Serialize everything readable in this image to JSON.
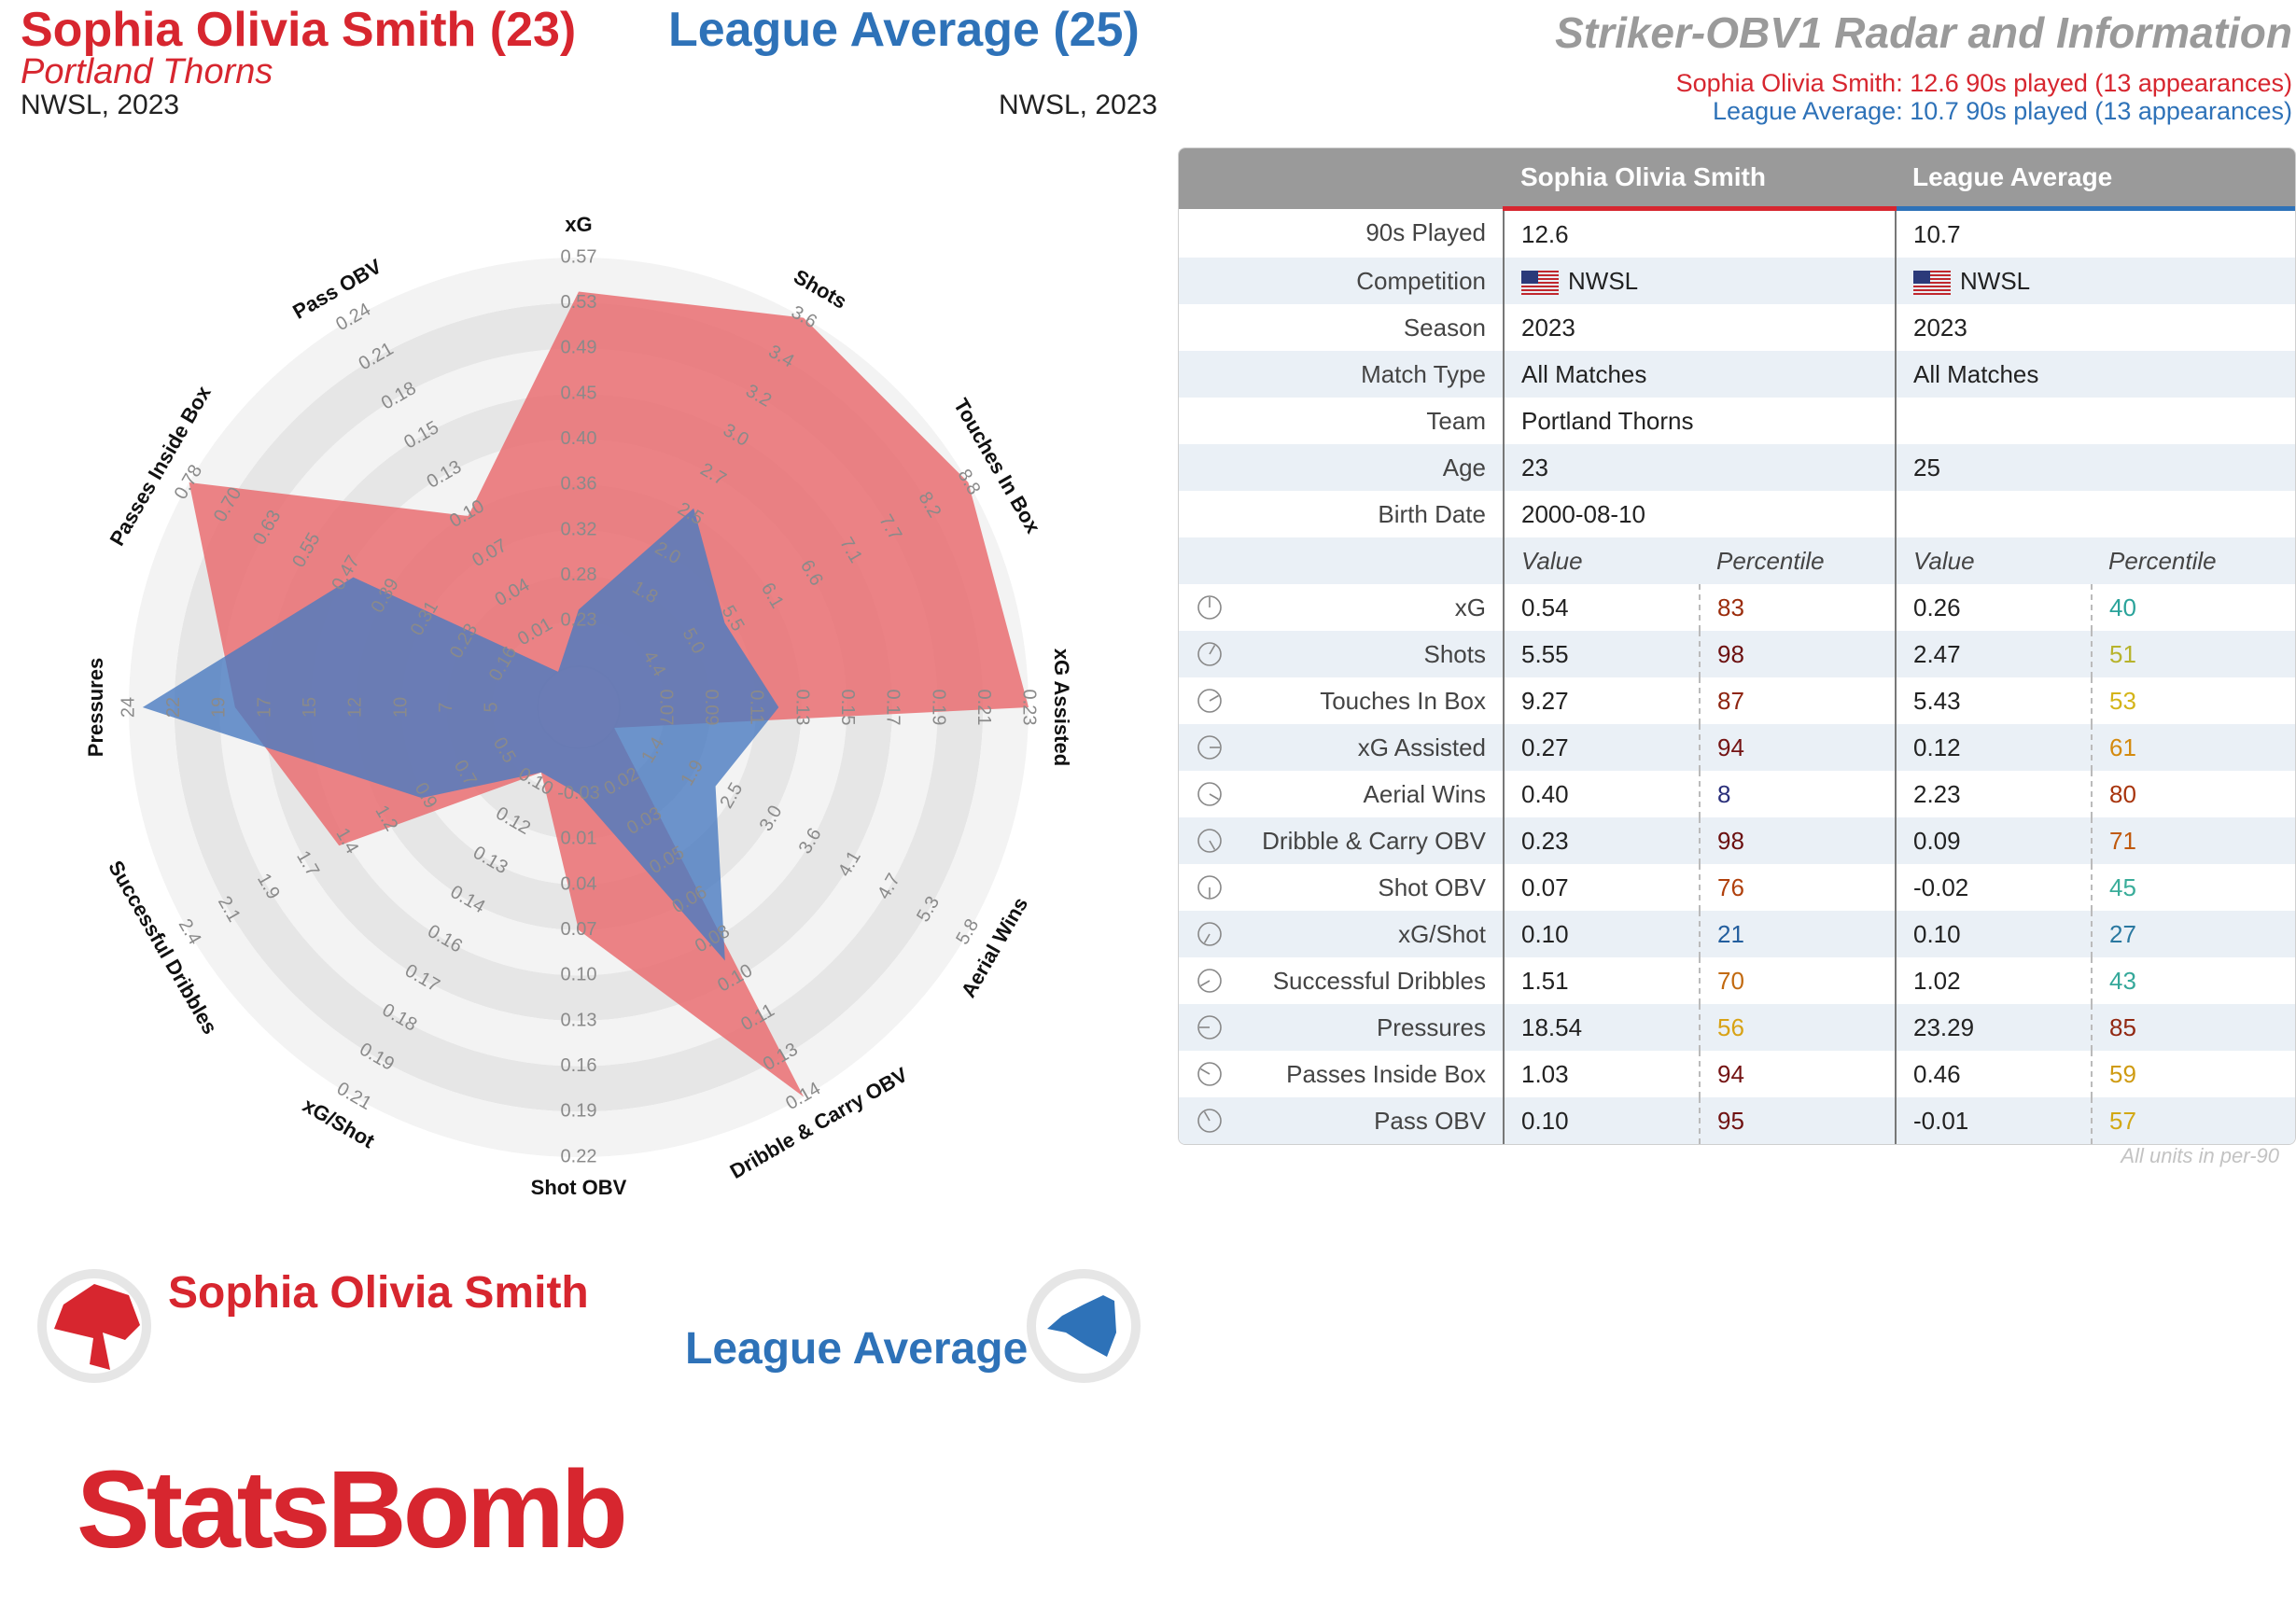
{
  "header": {
    "player_title": "Sophia Olivia Smith (23)",
    "team": "Portland Thorns",
    "competition_season": "NWSL, 2023",
    "average_title": "League Average (25)",
    "average_competition_season": "NWSL, 2023",
    "chart_title": "Striker-OBV1 Radar and Information",
    "player_played": "Sophia Olivia Smith: 12.6 90s played (13 appearances)",
    "average_played": "League Average: 10.7 90s played (13 appearances)"
  },
  "colors": {
    "player": "#d7262f",
    "player_fill": "#e9696d",
    "average": "#2e72b8",
    "average_fill": "#4a7bc0"
  },
  "table": {
    "headers": [
      "",
      "Sophia Olivia Smith",
      "League Average"
    ],
    "info_rows": [
      {
        "label": "90s Played",
        "player": "12.6",
        "average": "10.7"
      },
      {
        "label": "Competition",
        "player": "NWSL",
        "average": "NWSL",
        "flag": true
      },
      {
        "label": "Season",
        "player": "2023",
        "average": "2023"
      },
      {
        "label": "Match Type",
        "player": "All Matches",
        "average": "All Matches"
      },
      {
        "label": "Team",
        "player": "Portland Thorns",
        "average": ""
      },
      {
        "label": "Age",
        "player": "23",
        "average": "25"
      },
      {
        "label": "Birth Date",
        "player": "2000-08-10",
        "average": ""
      }
    ],
    "subheaders": [
      "Value",
      "Percentile",
      "Value",
      "Percentile"
    ],
    "metric_rows": [
      {
        "label": "xG",
        "pv": "0.54",
        "pp": "83",
        "ppc": "#9b2c0b",
        "av": "0.26",
        "ap": "40",
        "apc": "#2aa39a"
      },
      {
        "label": "Shots",
        "pv": "5.55",
        "pp": "98",
        "ppc": "#6b0f0f",
        "av": "2.47",
        "ap": "51",
        "apc": "#b7b32c"
      },
      {
        "label": "Touches In Box",
        "pv": "9.27",
        "pp": "87",
        "ppc": "#8e2410",
        "av": "5.43",
        "ap": "53",
        "apc": "#d4b419"
      },
      {
        "label": "xG Assisted",
        "pv": "0.27",
        "pp": "94",
        "ppc": "#741313",
        "av": "0.12",
        "ap": "61",
        "apc": "#d48a0e"
      },
      {
        "label": "Aerial Wins",
        "pv": "0.40",
        "pp": "8",
        "ppc": "#2a2f7a",
        "av": "2.23",
        "ap": "80",
        "apc": "#a8340c"
      },
      {
        "label": "Dribble & Carry OBV",
        "pv": "0.23",
        "pp": "98",
        "ppc": "#6b0f0f",
        "av": "0.09",
        "ap": "71",
        "apc": "#c0590c"
      },
      {
        "label": "Shot OBV",
        "pv": "0.07",
        "pp": "76",
        "ppc": "#b0400c",
        "av": "-0.02",
        "ap": "45",
        "apc": "#3aad9a"
      },
      {
        "label": "xG/Shot",
        "pv": "0.10",
        "pp": "21",
        "ppc": "#235e9e",
        "av": "0.10",
        "ap": "27",
        "apc": "#2a78a0"
      },
      {
        "label": "Successful Dribbles",
        "pv": "1.51",
        "pp": "70",
        "ppc": "#c26a10",
        "av": "1.02",
        "ap": "43",
        "apc": "#35a89a"
      },
      {
        "label": "Pressures",
        "pv": "18.54",
        "pp": "56",
        "ppc": "#d8a215",
        "av": "23.29",
        "ap": "85",
        "apc": "#922812"
      },
      {
        "label": "Passes Inside Box",
        "pv": "1.03",
        "pp": "94",
        "ppc": "#741313",
        "av": "0.46",
        "ap": "59",
        "apc": "#cf9b12"
      },
      {
        "label": "Pass OBV",
        "pv": "0.10",
        "pp": "95",
        "ppc": "#701212",
        "av": "-0.01",
        "ap": "57",
        "apc": "#d2a814"
      }
    ],
    "footnote": "All units in per-90"
  },
  "legend": {
    "player": "Sophia Olivia Smith",
    "average": "League Average"
  },
  "brand": "StatsBomb",
  "chart_data": {
    "type": "radar",
    "axes": [
      {
        "label": "xG",
        "ticks": [
          "0.23",
          "0.28",
          "0.32",
          "0.36",
          "0.40",
          "0.45",
          "0.49",
          "0.53",
          "0.57"
        ],
        "min": 0.21,
        "max": 0.57
      },
      {
        "label": "Shots",
        "ticks": [
          "1.8",
          "2.0",
          "2.5",
          "2.7",
          "3.0",
          "3.2",
          "3.4",
          "3.6"
        ],
        "min": 1.5,
        "max": 3.6
      },
      {
        "label": "Touches In Box",
        "ticks": [
          "4.4",
          "5.0",
          "5.5",
          "6.1",
          "6.6",
          "7.1",
          "7.7",
          "8.2",
          "8.8"
        ],
        "min": 3.9,
        "max": 8.8
      },
      {
        "label": "xG Assisted",
        "ticks": [
          "0.07",
          "0.09",
          "0.11",
          "0.13",
          "0.15",
          "0.17",
          "0.19",
          "0.21",
          "0.23"
        ],
        "min": 0.05,
        "max": 0.23
      },
      {
        "label": "Aerial Wins",
        "ticks": [
          "1.4",
          "1.9",
          "2.5",
          "3.0",
          "3.6",
          "4.1",
          "4.7",
          "5.3",
          "5.8"
        ],
        "min": 0.8,
        "max": 5.8
      },
      {
        "label": "Dribble & Carry OBV",
        "ticks": [
          "0.02",
          "0.03",
          "0.05",
          "0.06",
          "0.08",
          "0.10",
          "0.11",
          "0.13",
          "0.14"
        ],
        "min": 0.01,
        "max": 0.14
      },
      {
        "label": "Shot OBV",
        "ticks": [
          "-0.03",
          "0.01",
          "0.04",
          "0.07",
          "0.10",
          "0.13",
          "0.16",
          "0.19",
          "0.22"
        ],
        "min": -0.05,
        "max": 0.22
      },
      {
        "label": "xG/Shot",
        "ticks": [
          "0.10",
          "0.12",
          "0.13",
          "0.14",
          "0.16",
          "0.17",
          "0.18",
          "0.19",
          "0.21"
        ],
        "min": 0.09,
        "max": 0.21
      },
      {
        "label": "Successful Dribbles",
        "ticks": [
          "0.5",
          "0.7",
          "0.9",
          "1.2",
          "1.4",
          "1.7",
          "1.9",
          "2.1",
          "2.4"
        ],
        "min": 0.3,
        "max": 2.4
      },
      {
        "label": "Pressures",
        "ticks": [
          "5",
          "7",
          "10",
          "12",
          "15",
          "17",
          "19",
          "22",
          "24"
        ],
        "min": 3,
        "max": 24
      },
      {
        "label": "Passes Inside Box",
        "ticks": [
          "0.16",
          "0.23",
          "0.31",
          "0.39",
          "0.47",
          "0.55",
          "0.63",
          "0.70",
          "0.78"
        ],
        "min": 0.09,
        "max": 0.78
      },
      {
        "label": "Pass OBV",
        "ticks": [
          "0.01",
          "0.04",
          "0.07",
          "0.10",
          "0.13",
          "0.15",
          "0.18",
          "0.21",
          "0.24"
        ],
        "min": -0.01,
        "max": 0.24
      }
    ],
    "series": [
      {
        "name": "Sophia Olivia Smith",
        "values": [
          0.54,
          5.55,
          9.27,
          0.27,
          0.4,
          0.23,
          0.07,
          0.1,
          1.51,
          18.54,
          1.03,
          0.1
        ]
      },
      {
        "name": "League Average",
        "values": [
          0.26,
          2.47,
          5.43,
          0.12,
          2.23,
          0.09,
          -0.02,
          0.1,
          1.02,
          23.29,
          0.46,
          -0.01
        ]
      }
    ]
  }
}
